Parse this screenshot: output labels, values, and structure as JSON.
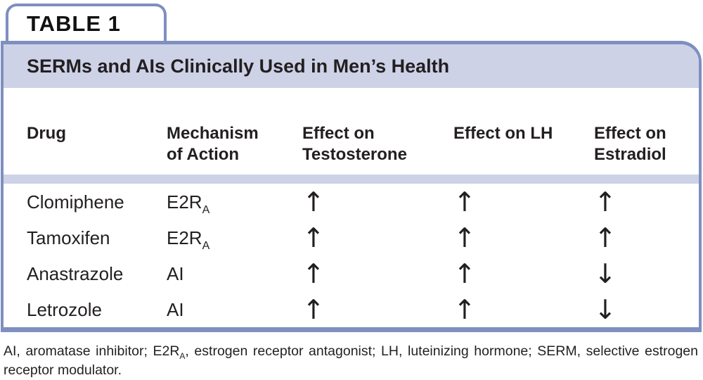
{
  "tab": {
    "label": "TABLE 1"
  },
  "table": {
    "title": "SERMs and AIs Clinically Used in Men’s Health",
    "columns": [
      {
        "lines": [
          "Drug"
        ]
      },
      {
        "lines": [
          "Mechanism",
          "of Action"
        ]
      },
      {
        "lines": [
          "Effect on",
          "Testosterone"
        ]
      },
      {
        "lines": [
          "Effect on LH"
        ]
      },
      {
        "lines": [
          "Effect on",
          "Estradiol"
        ]
      }
    ],
    "rows": [
      {
        "drug": "Clomiphene",
        "mechanism": {
          "base": "E2R",
          "sub": "A"
        },
        "testosterone": "↑",
        "lh": "↑",
        "estradiol": "↑"
      },
      {
        "drug": "Tamoxifen",
        "mechanism": {
          "base": "E2R",
          "sub": "A"
        },
        "testosterone": "↑",
        "lh": "↑",
        "estradiol": "↑"
      },
      {
        "drug": "Anastrazole",
        "mechanism": {
          "base": "AI",
          "sub": ""
        },
        "testosterone": "↑",
        "lh": "↑",
        "estradiol": "↓"
      },
      {
        "drug": "Letrozole",
        "mechanism": {
          "base": "AI",
          "sub": ""
        },
        "testosterone": "↑",
        "lh": "↑",
        "estradiol": "↓"
      }
    ]
  },
  "footnote": {
    "part1": "AI, aromatase inhibitor; E2R",
    "sub": "A",
    "part2": ", estrogen receptor antagonist; LH, luteinizing hormone; SERM, selective estrogen receptor modulator."
  },
  "colors": {
    "border": "#7e8fc0",
    "band": "#cdd2e7",
    "text": "#231f20"
  }
}
